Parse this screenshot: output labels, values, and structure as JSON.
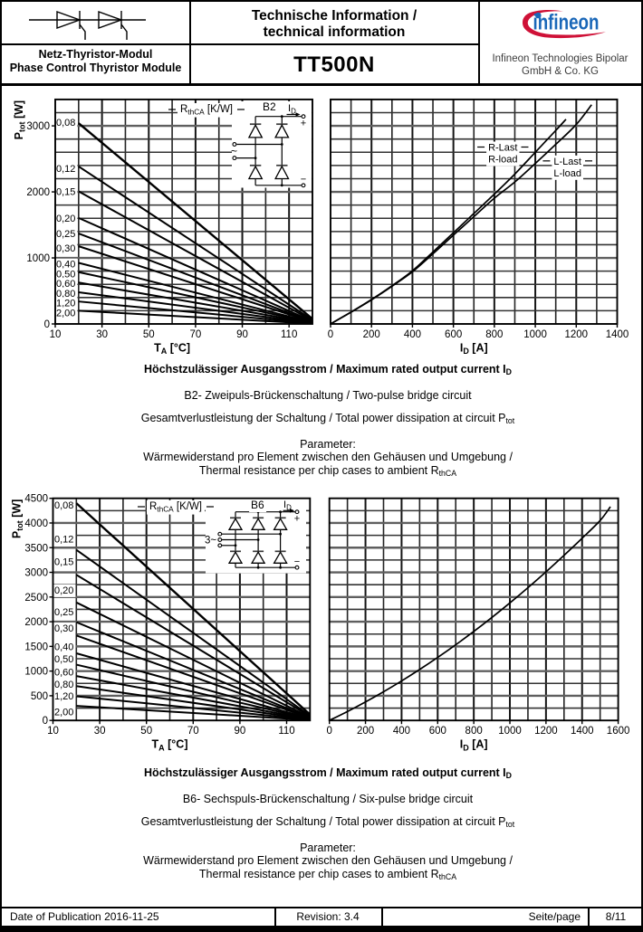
{
  "header": {
    "symbol": "dual-thyristor-symbol",
    "family_de": "Netz-Thyristor-Modul",
    "family_en": "Phase Control Thyristor Module",
    "doc_title_de": "Technische Information /",
    "doc_title_en": "technical information",
    "part_number": "TT500N",
    "logo_text": "infineon",
    "company_line1": "Infineon Technologies Bipolar",
    "company_line2": "GmbH & Co. KG",
    "logo_blue": "#1a67b8",
    "logo_red": "#cf1137"
  },
  "sections": [
    {
      "heading": [
        "Höchstzulässiger Ausgangsstrom / Maximum rated output current I",
        [
          "D"
        ]
      ],
      "lines": [
        [
          "B2- Zweipuls-Brückenschaltung / Two-pulse bridge circuit"
        ],
        [
          "Gesamtverlustleistung der Schaltung / Total power dissipation at circuit P",
          [
            "tot"
          ]
        ],
        [
          "Parameter:"
        ],
        [
          "Wärmewiderstand pro Element zwischen den Gehäusen und Umgebung /"
        ],
        [
          "Thermal resistance per chip cases to ambient R",
          [
            "thCA"
          ]
        ]
      ]
    },
    {
      "heading": [
        "Höchstzulässiger Ausgangsstrom / Maximum rated output current I",
        [
          "D"
        ]
      ],
      "lines": [
        [
          "B6- Sechspuls-Brückenschaltung / Six-pulse bridge circuit"
        ],
        [
          "Gesamtverlustleistung der Schaltung / Total power dissipation at circuit P",
          [
            "tot"
          ]
        ],
        [
          "Parameter:"
        ],
        [
          "Wärmewiderstand pro Element zwischen den Gehäusen und Umgebung /"
        ],
        [
          "Thermal resistance per chip cases to ambient R",
          [
            "thCA"
          ]
        ]
      ]
    }
  ],
  "chart_data": [
    {
      "id": "tl",
      "type": "line",
      "title": "Total power dissipation vs ambient temperature (B2 circuit)",
      "xlabel": [
        "T",
        [
          "A"
        ],
        " [°C]"
      ],
      "ylabel": [
        "P",
        [
          "tot"
        ],
        " [W]"
      ],
      "x": {
        "min": 10,
        "max": 120,
        "grid_step": 10,
        "ticks": [
          10,
          30,
          50,
          70,
          90,
          110
        ]
      },
      "y": {
        "min": 0,
        "max": 3400,
        "grid_minor": 200,
        "grid_major": 1000,
        "ticks": [
          0,
          1000,
          2000,
          3000
        ]
      },
      "corner_label": [
        "R",
        [
          "thCA"
        ],
        " [K/W]"
      ],
      "fan": {
        "x_start": 20,
        "x_end": 120,
        "lines": [
          {
            "rth": "0,08",
            "p_start": 3040,
            "p_end": 76,
            "label_y": 3055
          },
          {
            "rth": "0,12",
            "p_start": 2385,
            "p_end": 60,
            "label_y": 2355
          },
          {
            "rth": "0,15",
            "p_start": 2007,
            "p_end": 50,
            "label_y": 2010
          },
          {
            "rth": "0,20",
            "p_start": 1605,
            "p_end": 40,
            "label_y": 1600
          },
          {
            "rth": "0,25",
            "p_start": 1370,
            "p_end": 34,
            "label_y": 1370
          },
          {
            "rth": "0,30",
            "p_start": 1177,
            "p_end": 29,
            "label_y": 1150
          },
          {
            "rth": "0,40",
            "p_start": 925,
            "p_end": 23,
            "label_y": 908
          },
          {
            "rth": "0,50",
            "p_start": 785,
            "p_end": 20,
            "label_y": 760
          },
          {
            "rth": "0,60",
            "p_start": 627,
            "p_end": 16,
            "label_y": 615
          },
          {
            "rth": "0,80",
            "p_start": 480,
            "p_end": 12,
            "label_y": 467
          },
          {
            "rth": "1,20",
            "p_start": 340,
            "p_end": 9,
            "label_y": 319
          },
          {
            "rth": "2,00",
            "p_start": 200,
            "p_end": 5,
            "label_y": 171
          }
        ]
      },
      "inset": {
        "type": "B2",
        "circuit_label": "B2",
        "current_label": [
          "I",
          [
            "D"
          ]
        ],
        "plus": "+",
        "minus": "−",
        "ac": "~"
      }
    },
    {
      "id": "tr",
      "type": "line",
      "title": "Maximum rated output current (B2 circuit)",
      "xlabel": [
        "I",
        [
          "D"
        ],
        " [A]"
      ],
      "x": {
        "min": 0,
        "max": 1400,
        "grid_step": 100,
        "ticks": [
          0,
          200,
          400,
          600,
          800,
          1000,
          1200,
          1400
        ]
      },
      "y": {
        "min": 0,
        "max": 3400,
        "grid_minor": 200,
        "grid_major": 1000,
        "ticks": []
      },
      "series": [
        {
          "name": "R-Last / R-load",
          "label_lines": [
            "R-Last",
            "R-load"
          ],
          "label_at": [
            770,
            2590
          ],
          "points": [
            [
              0,
              0
            ],
            [
              100,
              180
            ],
            [
              200,
              370
            ],
            [
              300,
              578
            ],
            [
              400,
              805
            ],
            [
              500,
              1090
            ],
            [
              600,
              1380
            ],
            [
              700,
              1673
            ],
            [
              800,
              1966
            ],
            [
              900,
              2270
            ],
            [
              1000,
              2600
            ],
            [
              1100,
              2930
            ],
            [
              1150,
              3100
            ]
          ]
        },
        {
          "name": "L-Last / L-load",
          "label_lines": [
            "L-Last",
            "L-load"
          ],
          "label_at": [
            1090,
            2380
          ],
          "points": [
            [
              0,
              0
            ],
            [
              100,
              178
            ],
            [
              200,
              365
            ],
            [
              300,
              570
            ],
            [
              400,
              790
            ],
            [
              500,
              1062
            ],
            [
              600,
              1345
            ],
            [
              700,
              1625
            ],
            [
              800,
              1905
            ],
            [
              900,
              2150
            ],
            [
              1000,
              2430
            ],
            [
              1100,
              2720
            ],
            [
              1200,
              3020
            ],
            [
              1275,
              3320
            ]
          ]
        }
      ]
    },
    {
      "id": "bl",
      "type": "line",
      "title": "Total power dissipation vs ambient temperature (B6 circuit)",
      "xlabel": [
        "T",
        [
          "A"
        ],
        " [°C]"
      ],
      "ylabel": [
        "P",
        [
          "tot"
        ],
        " [W]"
      ],
      "x": {
        "min": 10,
        "max": 120,
        "grid_step": 10,
        "ticks": [
          10,
          30,
          50,
          70,
          90,
          110
        ]
      },
      "y": {
        "min": 0,
        "max": 4500,
        "grid_minor": 250,
        "grid_major": 500,
        "ticks": [
          0,
          500,
          1000,
          1500,
          2000,
          2500,
          3000,
          3500,
          4000,
          4500
        ]
      },
      "corner_label": [
        "R",
        [
          "thCA"
        ],
        " [K/W]"
      ],
      "fan": {
        "x_start": 20,
        "x_end": 120,
        "lines": [
          {
            "rth": "0,08",
            "p_start": 4400,
            "p_end": 120,
            "label_y": 4370
          },
          {
            "rth": "0,12",
            "p_start": 3455,
            "p_end": 95,
            "label_y": 3675
          },
          {
            "rth": "0,15",
            "p_start": 2950,
            "p_end": 82,
            "label_y": 3225
          },
          {
            "rth": "0,20",
            "p_start": 2390,
            "p_end": 66,
            "label_y": 2645
          },
          {
            "rth": "0,25",
            "p_start": 1990,
            "p_end": 55,
            "label_y": 2205
          },
          {
            "rth": "0,30",
            "p_start": 1720,
            "p_end": 48,
            "label_y": 1875
          },
          {
            "rth": "0,40",
            "p_start": 1360,
            "p_end": 38,
            "label_y": 1495
          },
          {
            "rth": "0,50",
            "p_start": 1130,
            "p_end": 31,
            "label_y": 1250
          },
          {
            "rth": "0,60",
            "p_start": 900,
            "p_end": 25,
            "label_y": 985
          },
          {
            "rth": "0,80",
            "p_start": 695,
            "p_end": 19,
            "label_y": 740
          },
          {
            "rth": "1,20",
            "p_start": 490,
            "p_end": 14,
            "label_y": 497
          },
          {
            "rth": "2,00",
            "p_start": 295,
            "p_end": 8,
            "label_y": 176
          }
        ]
      },
      "inset": {
        "type": "B6",
        "circuit_label": "B6",
        "current_label": [
          "I",
          [
            "D"
          ]
        ],
        "plus": "+",
        "minus": "−",
        "ac": "3~"
      }
    },
    {
      "id": "br",
      "type": "line",
      "title": "Maximum rated output current (B6 circuit)",
      "xlabel": [
        "I",
        [
          "D"
        ],
        " [A]"
      ],
      "x": {
        "min": 0,
        "max": 1600,
        "grid_step": 100,
        "ticks": [
          0,
          200,
          400,
          600,
          800,
          1000,
          1200,
          1400,
          1600
        ]
      },
      "y": {
        "min": 0,
        "max": 4500,
        "grid_minor": 250,
        "grid_major": 500,
        "ticks": []
      },
      "series": [
        {
          "name": "Output current curve",
          "label_lines": [],
          "points": [
            [
              0,
              0
            ],
            [
              100,
              181
            ],
            [
              200,
              375
            ],
            [
              300,
              581
            ],
            [
              400,
              800
            ],
            [
              500,
              1032
            ],
            [
              600,
              1276
            ],
            [
              700,
              1533
            ],
            [
              800,
              1803
            ],
            [
              900,
              2086
            ],
            [
              1000,
              2381
            ],
            [
              1100,
              2689
            ],
            [
              1200,
              3010
            ],
            [
              1300,
              3344
            ],
            [
              1400,
              3690
            ],
            [
              1500,
              4050
            ],
            [
              1557,
              4330
            ]
          ]
        }
      ]
    }
  ],
  "footer": {
    "cells": [
      {
        "text": "Date of Publication 2016-11-25",
        "align": "left"
      },
      {
        "text": "Revision: 3.4",
        "align": "center"
      },
      {
        "text": "Seite/page",
        "align": "right"
      },
      {
        "text": "8/11",
        "align": "center"
      }
    ]
  }
}
